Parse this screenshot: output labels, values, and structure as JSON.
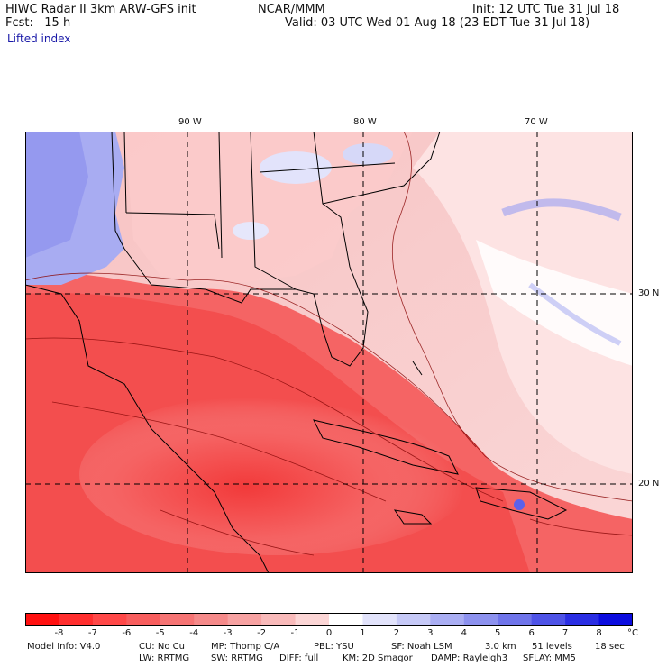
{
  "header": {
    "title_left": "HIWC Radar II 3km ARW-GFS init",
    "org": "NCAR/MMM",
    "init": "Init: 12 UTC Tue 31 Jul 18",
    "fcst": "Fcst:   15 h",
    "valid": "Valid: 03 UTC Wed 01 Aug 18 (23 EDT Tue 31 Jul 18)",
    "field": "Lifted index"
  },
  "map": {
    "lon_labels": [
      "90 W",
      "80 W",
      "70 W"
    ],
    "lat_labels": [
      "30 N",
      "20 N"
    ],
    "colors": {
      "deep_red": "#ee2a2a",
      "mid_red": "#f56a6a",
      "light_red": "#fbb3b3",
      "pale": "#fde4e4",
      "neutral": "#ffffff",
      "light_blue": "#c8cdf7",
      "blue": "#8e94f2",
      "contour": "#8b0a0a",
      "border": "#000000"
    }
  },
  "colorbar": {
    "labels": [
      "-8",
      "-7",
      "-6",
      "-5",
      "-4",
      "-3",
      "-2",
      "-1",
      "0",
      "1",
      "2",
      "3",
      "4",
      "5",
      "6",
      "7",
      "8"
    ],
    "unit": "°C",
    "colors": [
      "#ff1010",
      "#ff2e2e",
      "#ff4848",
      "#f85e5e",
      "#f67474",
      "#f58a8a",
      "#f7a2a2",
      "#f9baba",
      "#fcd6d6",
      "#ffffff",
      "#e2e3fb",
      "#c6c9f7",
      "#aaaef3",
      "#8d92ef",
      "#6f74ea",
      "#4e53e7",
      "#2a2ee3",
      "#0b0cdf"
    ]
  },
  "footer": {
    "line1": [
      "Model Info: V4.0",
      "CU: No Cu",
      "MP: Thomp C/A",
      "PBL: YSU",
      "SF: Noah LSM",
      "3.0 km",
      "51 levels",
      "18 sec"
    ],
    "line2": [
      "LW: RRTMG",
      "SW: RRTMG",
      "DIFF: full",
      "KM: 2D Smagor",
      "DAMP: Rayleigh3",
      "SFLAY: MM5"
    ]
  }
}
